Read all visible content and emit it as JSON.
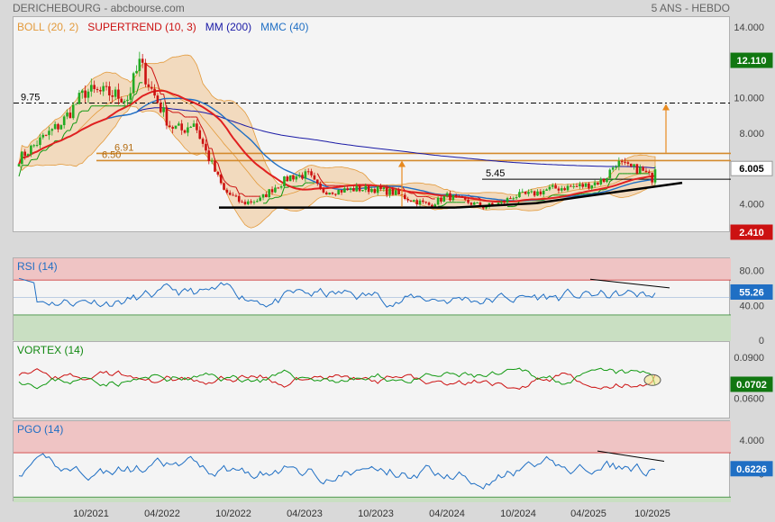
{
  "header": {
    "left": "DERICHEBOURG - abcbourse.com",
    "right": "5 ANS - HEBDO"
  },
  "legend": [
    {
      "label": "BOLL (20, 2)",
      "color": "#e39a3b"
    },
    {
      "label": "SUPERTREND (10, 3)",
      "color": "#cc1111"
    },
    {
      "label": "MM (200)",
      "color": "#1a1aa6"
    },
    {
      "label": "MMC (40)",
      "color": "#1f6fc4"
    }
  ],
  "x_ticks": [
    "10/2021",
    "04/2022",
    "10/2022",
    "04/2023",
    "10/2023",
    "04/2024",
    "10/2024",
    "04/2025",
    "10/2025"
  ],
  "colors": {
    "up": "#22aa22",
    "down": "#cc1111",
    "boll": "#e39a3b",
    "supertrend_up": "#119911",
    "supertrend_dn": "#cc1111",
    "mm200": "#1a1aa6",
    "mmc40": "#1f6fc4",
    "rsi": "#1f6fc4",
    "pgo": "#1f6fc4",
    "vortex_plus": "#119911",
    "vortex_minus": "#cc1111"
  },
  "chart_data": [
    {
      "type": "candlestick",
      "name": "price",
      "y_ticks": [
        "14.000",
        "12.000",
        "10.000",
        "8.000",
        "6.000",
        "4.000",
        "2.410"
      ],
      "ylim": [
        2.41,
        14.6
      ],
      "badges": [
        {
          "label": "12.110",
          "value": 12.11,
          "color": "#117711"
        },
        {
          "label": "6.005",
          "value": 6.005,
          "color": "#ffffff",
          "text_color": "#000000"
        },
        {
          "label": "2.410",
          "value": 2.41,
          "color": "#cc1111"
        }
      ],
      "levels": [
        {
          "label": "9.75",
          "value": 9.75,
          "style": "dashdot"
        },
        {
          "label": "6.91",
          "value": 6.91,
          "style": "orange"
        },
        {
          "label": "6.50",
          "value": 6.5,
          "style": "orange"
        },
        {
          "label": "5.45",
          "value": 5.45,
          "style": "black"
        }
      ],
      "last_close": 6.005
    },
    {
      "type": "line",
      "name": "RSI (14)",
      "title": "RSI (14)",
      "y_ticks": [
        "80.00",
        "40.00",
        "0"
      ],
      "ylim": [
        0,
        95
      ],
      "zones": {
        "upper": 70,
        "lower": 30,
        "mid": 50
      },
      "last_label": "55.26",
      "last_value": 55.26
    },
    {
      "type": "line",
      "name": "VORTEX (14)",
      "title": "VORTEX (14)",
      "y_ticks": [
        "0.0900",
        "0.0600"
      ],
      "ylim": [
        0.045,
        0.102
      ],
      "last_label": "0.0702",
      "last_value": 0.0702
    },
    {
      "type": "line",
      "name": "PGO (14)",
      "title": "PGO (14)",
      "y_ticks": [
        "4.000",
        "0"
      ],
      "ylim": [
        -3.2,
        6.3
      ],
      "zones": {
        "upper": 2.6,
        "lower": -2.6
      },
      "last_label": "0.6226",
      "last_value": 0.6226
    }
  ]
}
